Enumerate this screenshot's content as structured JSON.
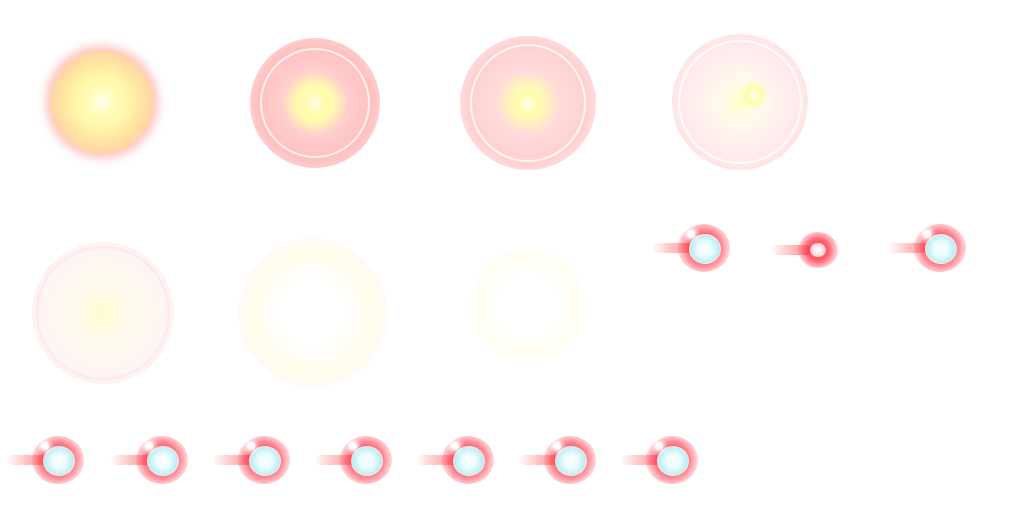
{
  "sprite_sheet": {
    "background": "#ffffff",
    "colors": {
      "flash_core": "#fff9c8",
      "flash_halo": "#ffb8b8",
      "projectile_glow": "#ff2840",
      "projectile_core": "#b9ecf4"
    },
    "frames": [
      {
        "id": 1,
        "kind": "impact-flash"
      },
      {
        "id": 2,
        "kind": "impact-flash"
      },
      {
        "id": 3,
        "kind": "impact-flash"
      },
      {
        "id": 4,
        "kind": "impact-flash"
      },
      {
        "id": 5,
        "kind": "impact-fade"
      },
      {
        "id": 6,
        "kind": "impact-fade"
      },
      {
        "id": 7,
        "kind": "impact-fade"
      },
      {
        "id": 8,
        "kind": "projectile"
      },
      {
        "id": 9,
        "kind": "projectile"
      },
      {
        "id": 10,
        "kind": "projectile"
      },
      {
        "id": 11,
        "kind": "projectile"
      },
      {
        "id": 12,
        "kind": "projectile"
      },
      {
        "id": 13,
        "kind": "projectile"
      },
      {
        "id": 14,
        "kind": "projectile"
      },
      {
        "id": 15,
        "kind": "projectile"
      },
      {
        "id": 16,
        "kind": "projectile"
      },
      {
        "id": 17,
        "kind": "projectile"
      }
    ]
  }
}
